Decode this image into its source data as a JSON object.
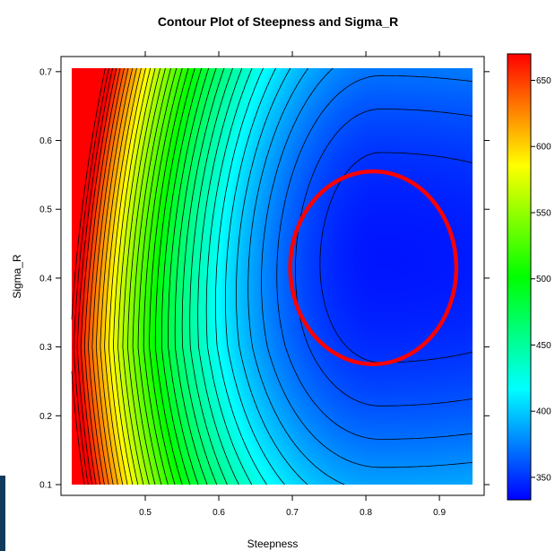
{
  "chart_data": {
    "type": "heatmap",
    "subtype": "filled-contour",
    "title": "Contour Plot of Steepness and Sigma_R",
    "xlabel": "Steepness",
    "ylabel": "Sigma_R",
    "xlim": [
      0.4,
      0.945
    ],
    "ylim": [
      0.1,
      0.705
    ],
    "x_ticks": [
      "0.5",
      "0.6",
      "0.7",
      "0.8",
      "0.9"
    ],
    "y_ticks": [
      "0.1",
      "0.2",
      "0.3",
      "0.4",
      "0.5",
      "0.6",
      "0.7"
    ],
    "colorbar": {
      "range": [
        333,
        670
      ],
      "ticks": [
        "350",
        "400",
        "450",
        "500",
        "550",
        "600",
        "650"
      ],
      "palette": "rainbow blue-to-red",
      "colors": [
        "#0000ff",
        "#00ffff",
        "#00ff00",
        "#ffff00",
        "#ff0000"
      ]
    },
    "minimum": {
      "x": 0.82,
      "y": 0.43,
      "value": 340
    },
    "contour_interval": 10,
    "highlight": {
      "shape": "ellipse",
      "color": "#ff0000",
      "center": [
        0.81,
        0.415
      ],
      "radius_x": 0.113,
      "radius_y": 0.14
    },
    "grid": false
  }
}
